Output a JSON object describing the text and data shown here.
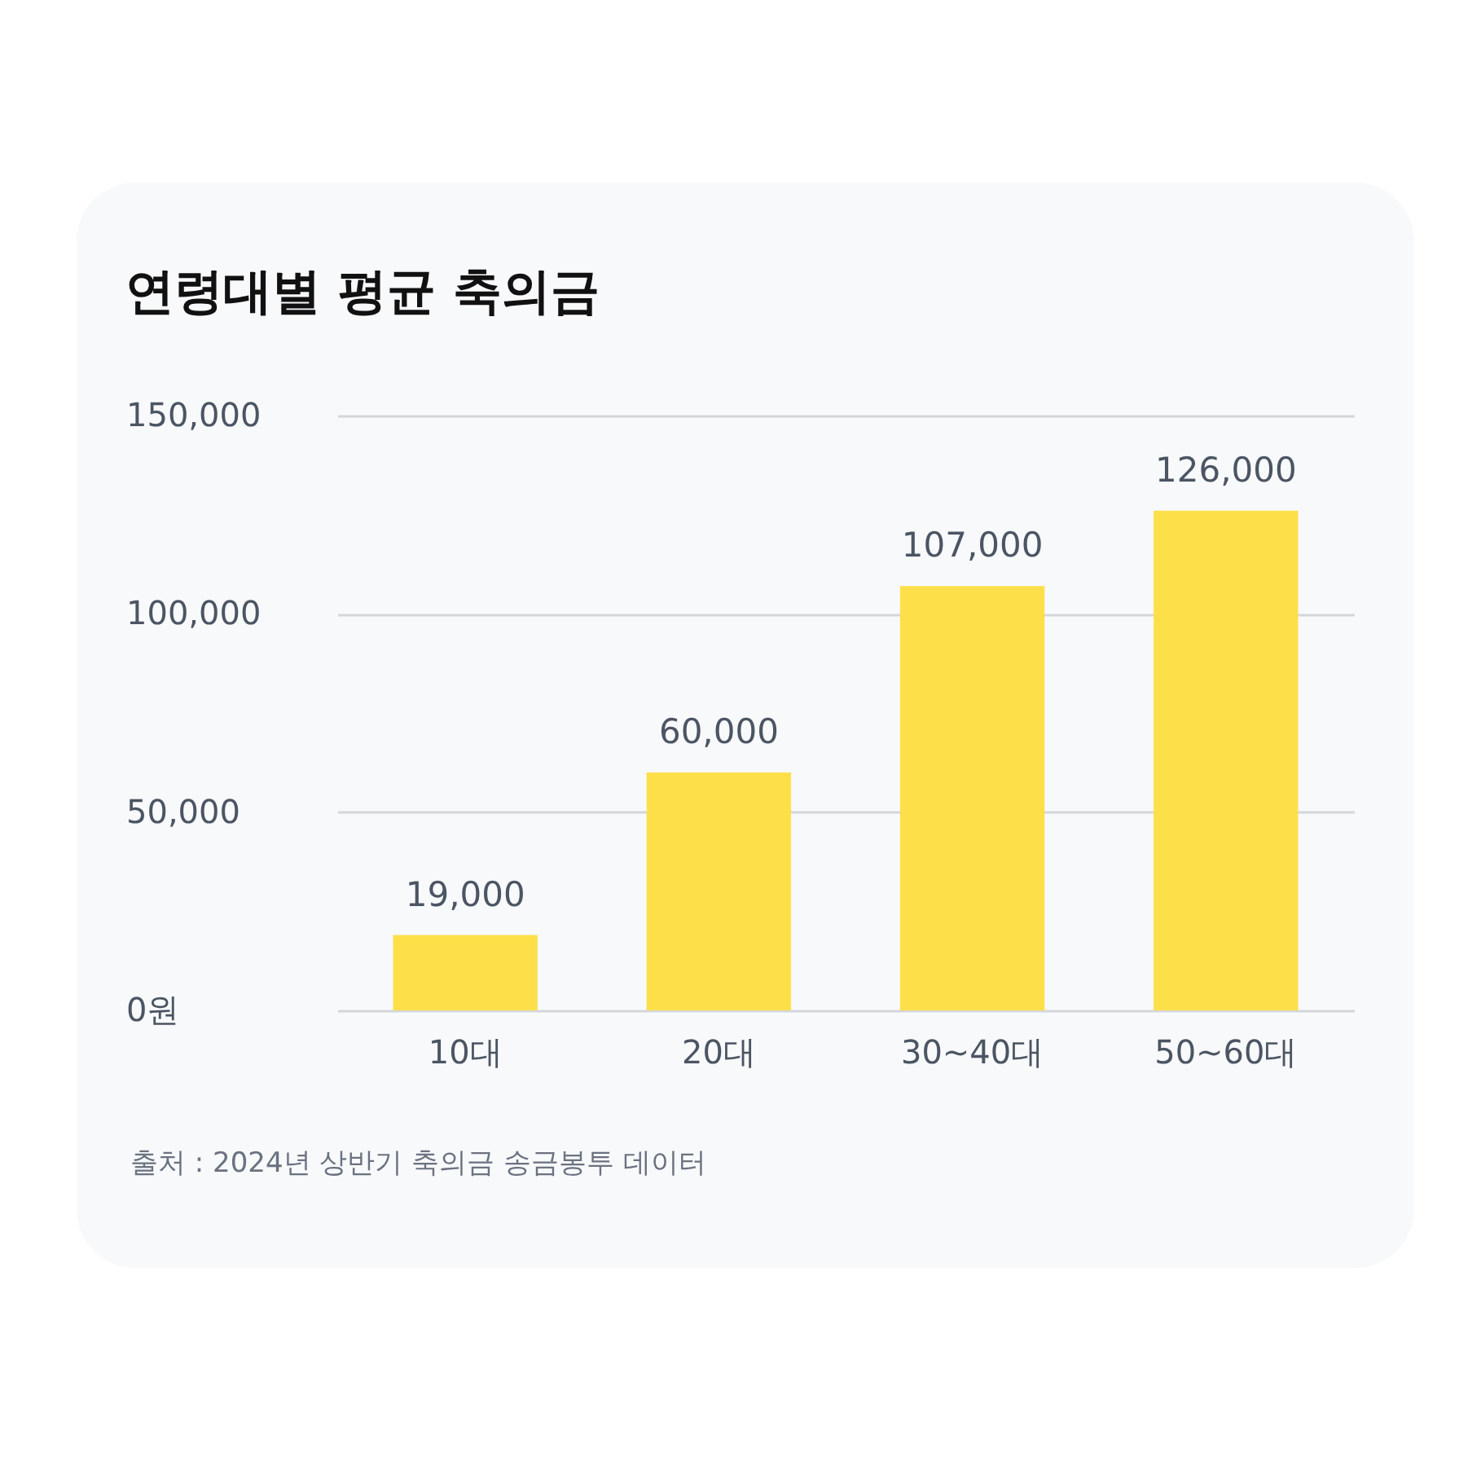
{
  "chart_data": {
    "type": "bar",
    "title": "연령대별 평균 축의금",
    "categories": [
      "10대",
      "20대",
      "30~40대",
      "50~60대"
    ],
    "values": [
      19000,
      60000,
      107000,
      126000
    ],
    "color": "#fddf4a",
    "value_labels": [
      "19,000",
      "60,000",
      "107,000",
      "126,000"
    ],
    "ylim": [
      0,
      150000
    ],
    "yticks": [
      {
        "value": 0,
        "label": "0원"
      },
      {
        "value": 50000,
        "label": "50,000"
      },
      {
        "value": 100000,
        "label": "100,000"
      },
      {
        "value": 150000,
        "label": "150,000"
      }
    ],
    "grid": "y",
    "annotations": [
      "출처 : 2024년 상반기 축의금 송금봉투 데이터"
    ]
  }
}
